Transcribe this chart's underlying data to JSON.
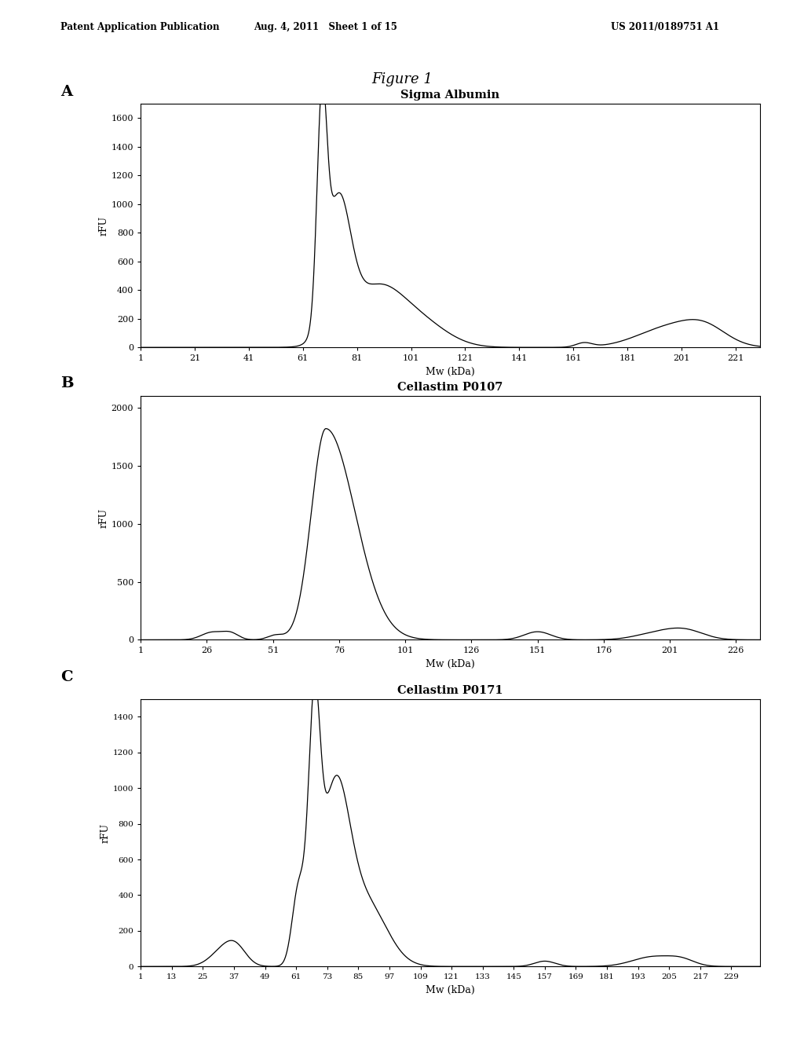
{
  "figure_title": "Figure 1",
  "header_left": "Patent Application Publication",
  "header_mid": "Aug. 4, 2011   Sheet 1 of 15",
  "header_right": "US 2011/0189751 A1",
  "panel_A": {
    "label": "A",
    "title": "Sigma Albumin",
    "xlabel": "Mw (kDa)",
    "ylabel": "rFU",
    "xticks": [
      1,
      21,
      41,
      61,
      81,
      101,
      121,
      141,
      161,
      181,
      201,
      221
    ],
    "yticks": [
      0,
      200,
      400,
      600,
      800,
      1000,
      1200,
      1400,
      1600
    ],
    "ylim": [
      0,
      1700
    ],
    "xlim": [
      1,
      230
    ]
  },
  "panel_B": {
    "label": "B",
    "title": "Cellastim P0107",
    "xlabel": "Mw (kDa)",
    "ylabel": "rFU",
    "xticks": [
      1,
      26,
      51,
      76,
      101,
      126,
      151,
      176,
      201,
      226
    ],
    "yticks": [
      0,
      500,
      1000,
      1500,
      2000
    ],
    "ylim": [
      0,
      2100
    ],
    "xlim": [
      1,
      235
    ]
  },
  "panel_C": {
    "label": "C",
    "title": "Cellastim P0171",
    "xlabel": "Mw (kDa)",
    "ylabel": "rFU",
    "xticks": [
      1,
      13,
      25,
      37,
      49,
      61,
      73,
      85,
      97,
      109,
      121,
      133,
      145,
      157,
      169,
      181,
      193,
      205,
      217,
      229
    ],
    "yticks": [
      0,
      200,
      400,
      600,
      800,
      1000,
      1200,
      1400
    ],
    "ylim": [
      0,
      1500
    ],
    "xlim": [
      1,
      240
    ]
  },
  "bg_color": "#ffffff",
  "line_color": "#000000",
  "panel_bg": "#ffffff",
  "outer_bg": "#f2f2f2"
}
